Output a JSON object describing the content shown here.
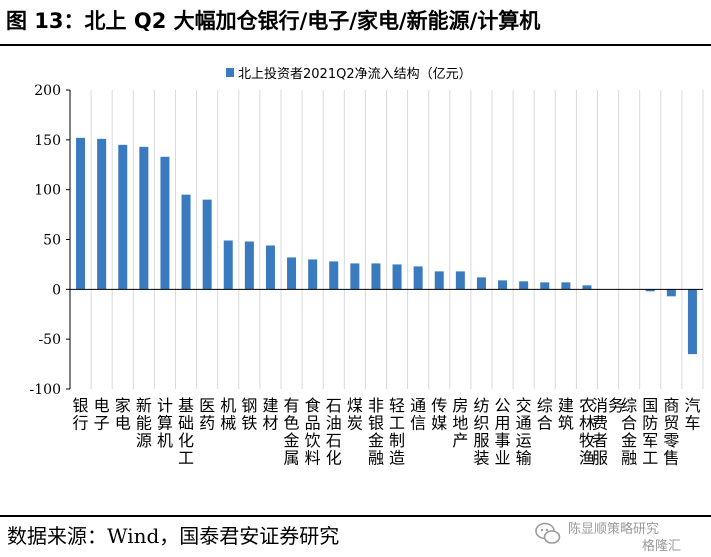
{
  "title": "图 13：北上 Q2 大幅加仓银行/电子/家电/新能源/计算机",
  "source": "数据来源：Wind，国泰君安证券研究",
  "watermark": {
    "line1": "陈显顺策略研究",
    "line2": "格隆汇"
  },
  "colors": {
    "bar": "#3a7bbf",
    "grid": "#d9d9d9",
    "axis": "#000000"
  },
  "chart_data": {
    "type": "bar",
    "title": "",
    "xlabel": "",
    "ylabel": "",
    "ylim": [
      -100,
      200
    ],
    "yticks": [
      -100,
      -50,
      0,
      50,
      100,
      150,
      200
    ],
    "grid": "vertical",
    "legend_position": "top-center",
    "categories": [
      "银行",
      "电子",
      "家电",
      "新能源",
      "计算机",
      "基础化工",
      "医药",
      "机械",
      "钢铁",
      "建材",
      "有色金属",
      "食品饮料",
      "石油石化",
      "煤炭",
      "非银金融",
      "轻工制造",
      "通信",
      "传媒",
      "房地产",
      "纺织服装",
      "公用事业",
      "交通运输",
      "综合",
      "建筑",
      "农林牧渔",
      "消费者服务",
      "综合金融",
      "国防军工",
      "商贸零售",
      "汽车"
    ],
    "series": [
      {
        "name": "北上投资者2021Q2净流入结构（亿元）",
        "values": [
          152,
          151,
          145,
          143,
          133,
          95,
          90,
          49,
          48,
          44,
          32,
          30,
          28,
          26,
          26,
          25,
          23,
          18,
          18,
          12,
          9,
          8,
          7,
          7,
          4,
          0,
          0,
          -2,
          -7,
          -65
        ]
      }
    ]
  }
}
